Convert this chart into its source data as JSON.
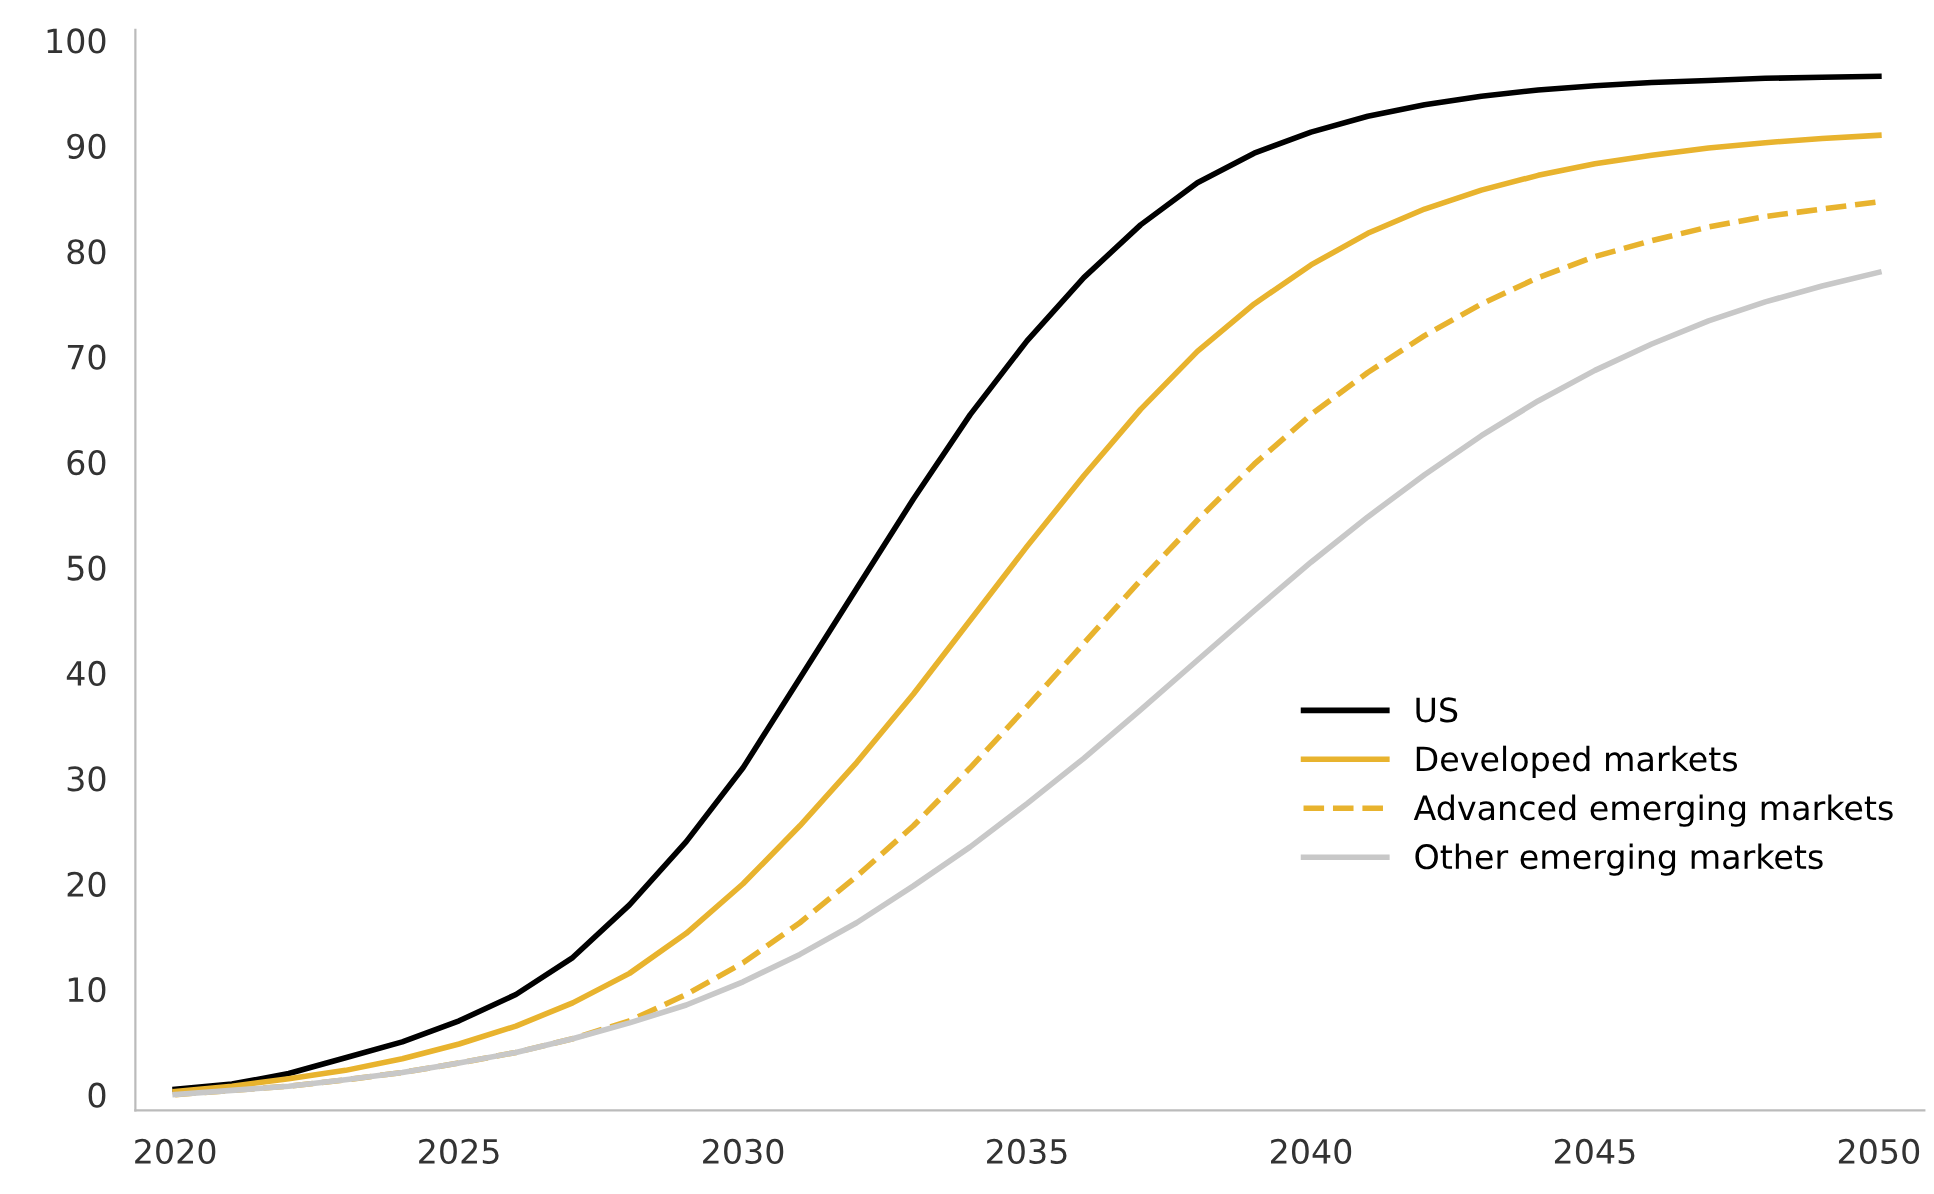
{
  "chart_data": {
    "type": "line",
    "x": [
      2020,
      2021,
      2022,
      2023,
      2024,
      2025,
      2026,
      2027,
      2028,
      2029,
      2030,
      2031,
      2032,
      2033,
      2034,
      2035,
      2036,
      2037,
      2038,
      2039,
      2040,
      2041,
      2042,
      2043,
      2044,
      2045,
      2046,
      2047,
      2048,
      2049,
      2050
    ],
    "series": [
      {
        "name": "US",
        "color": "#000000",
        "line_style": "solid",
        "values": [
          0.5,
          1,
          2,
          3.5,
          5,
          7,
          9.5,
          13,
          18,
          24,
          31,
          39.5,
          48,
          56.5,
          64.5,
          71.5,
          77.5,
          82.5,
          86.5,
          89.3,
          91.3,
          92.8,
          93.9,
          94.7,
          95.3,
          95.7,
          96,
          96.2,
          96.4,
          96.5,
          96.6
        ]
      },
      {
        "name": "Developed markets",
        "color": "#e8b32e",
        "line_style": "solid",
        "values": [
          0.3,
          0.8,
          1.5,
          2.3,
          3.4,
          4.8,
          6.5,
          8.7,
          11.5,
          15.3,
          20,
          25.5,
          31.5,
          38,
          45,
          52,
          58.7,
          65,
          70.5,
          75,
          78.7,
          81.7,
          84,
          85.8,
          87.2,
          88.3,
          89.1,
          89.8,
          90.3,
          90.7,
          91
        ]
      },
      {
        "name": "Advanced emerging markets",
        "color": "#e8b32e",
        "line_style": "dashed",
        "values": [
          0,
          0.4,
          0.8,
          1.4,
          2.1,
          3,
          4,
          5.3,
          7,
          9.5,
          12.5,
          16.3,
          20.7,
          25.5,
          31,
          36.8,
          42.8,
          48.8,
          54.5,
          59.8,
          64.5,
          68.5,
          72,
          75,
          77.5,
          79.5,
          81,
          82.3,
          83.3,
          84,
          84.7
        ]
      },
      {
        "name": "Other emerging markets",
        "color": "#c8c8c8",
        "line_style": "solid",
        "values": [
          0,
          0.4,
          0.8,
          1.4,
          2.1,
          3,
          4,
          5.3,
          6.8,
          8.5,
          10.7,
          13.3,
          16.3,
          19.8,
          23.5,
          27.6,
          31.9,
          36.5,
          41.2,
          45.9,
          50.5,
          54.8,
          58.8,
          62.5,
          65.8,
          68.7,
          71.2,
          73.4,
          75.2,
          76.7,
          78
        ]
      }
    ],
    "xlim": [
      2019.3,
      2050.8
    ],
    "xticks": [
      2020,
      2025,
      2030,
      2035,
      2040,
      2045,
      2050
    ],
    "ylim": [
      -1.5,
      101
    ],
    "yticks": [
      0,
      10,
      20,
      30,
      40,
      50,
      60,
      70,
      80,
      90,
      100
    ],
    "grid": false,
    "legend": "right",
    "marker": "none"
  }
}
